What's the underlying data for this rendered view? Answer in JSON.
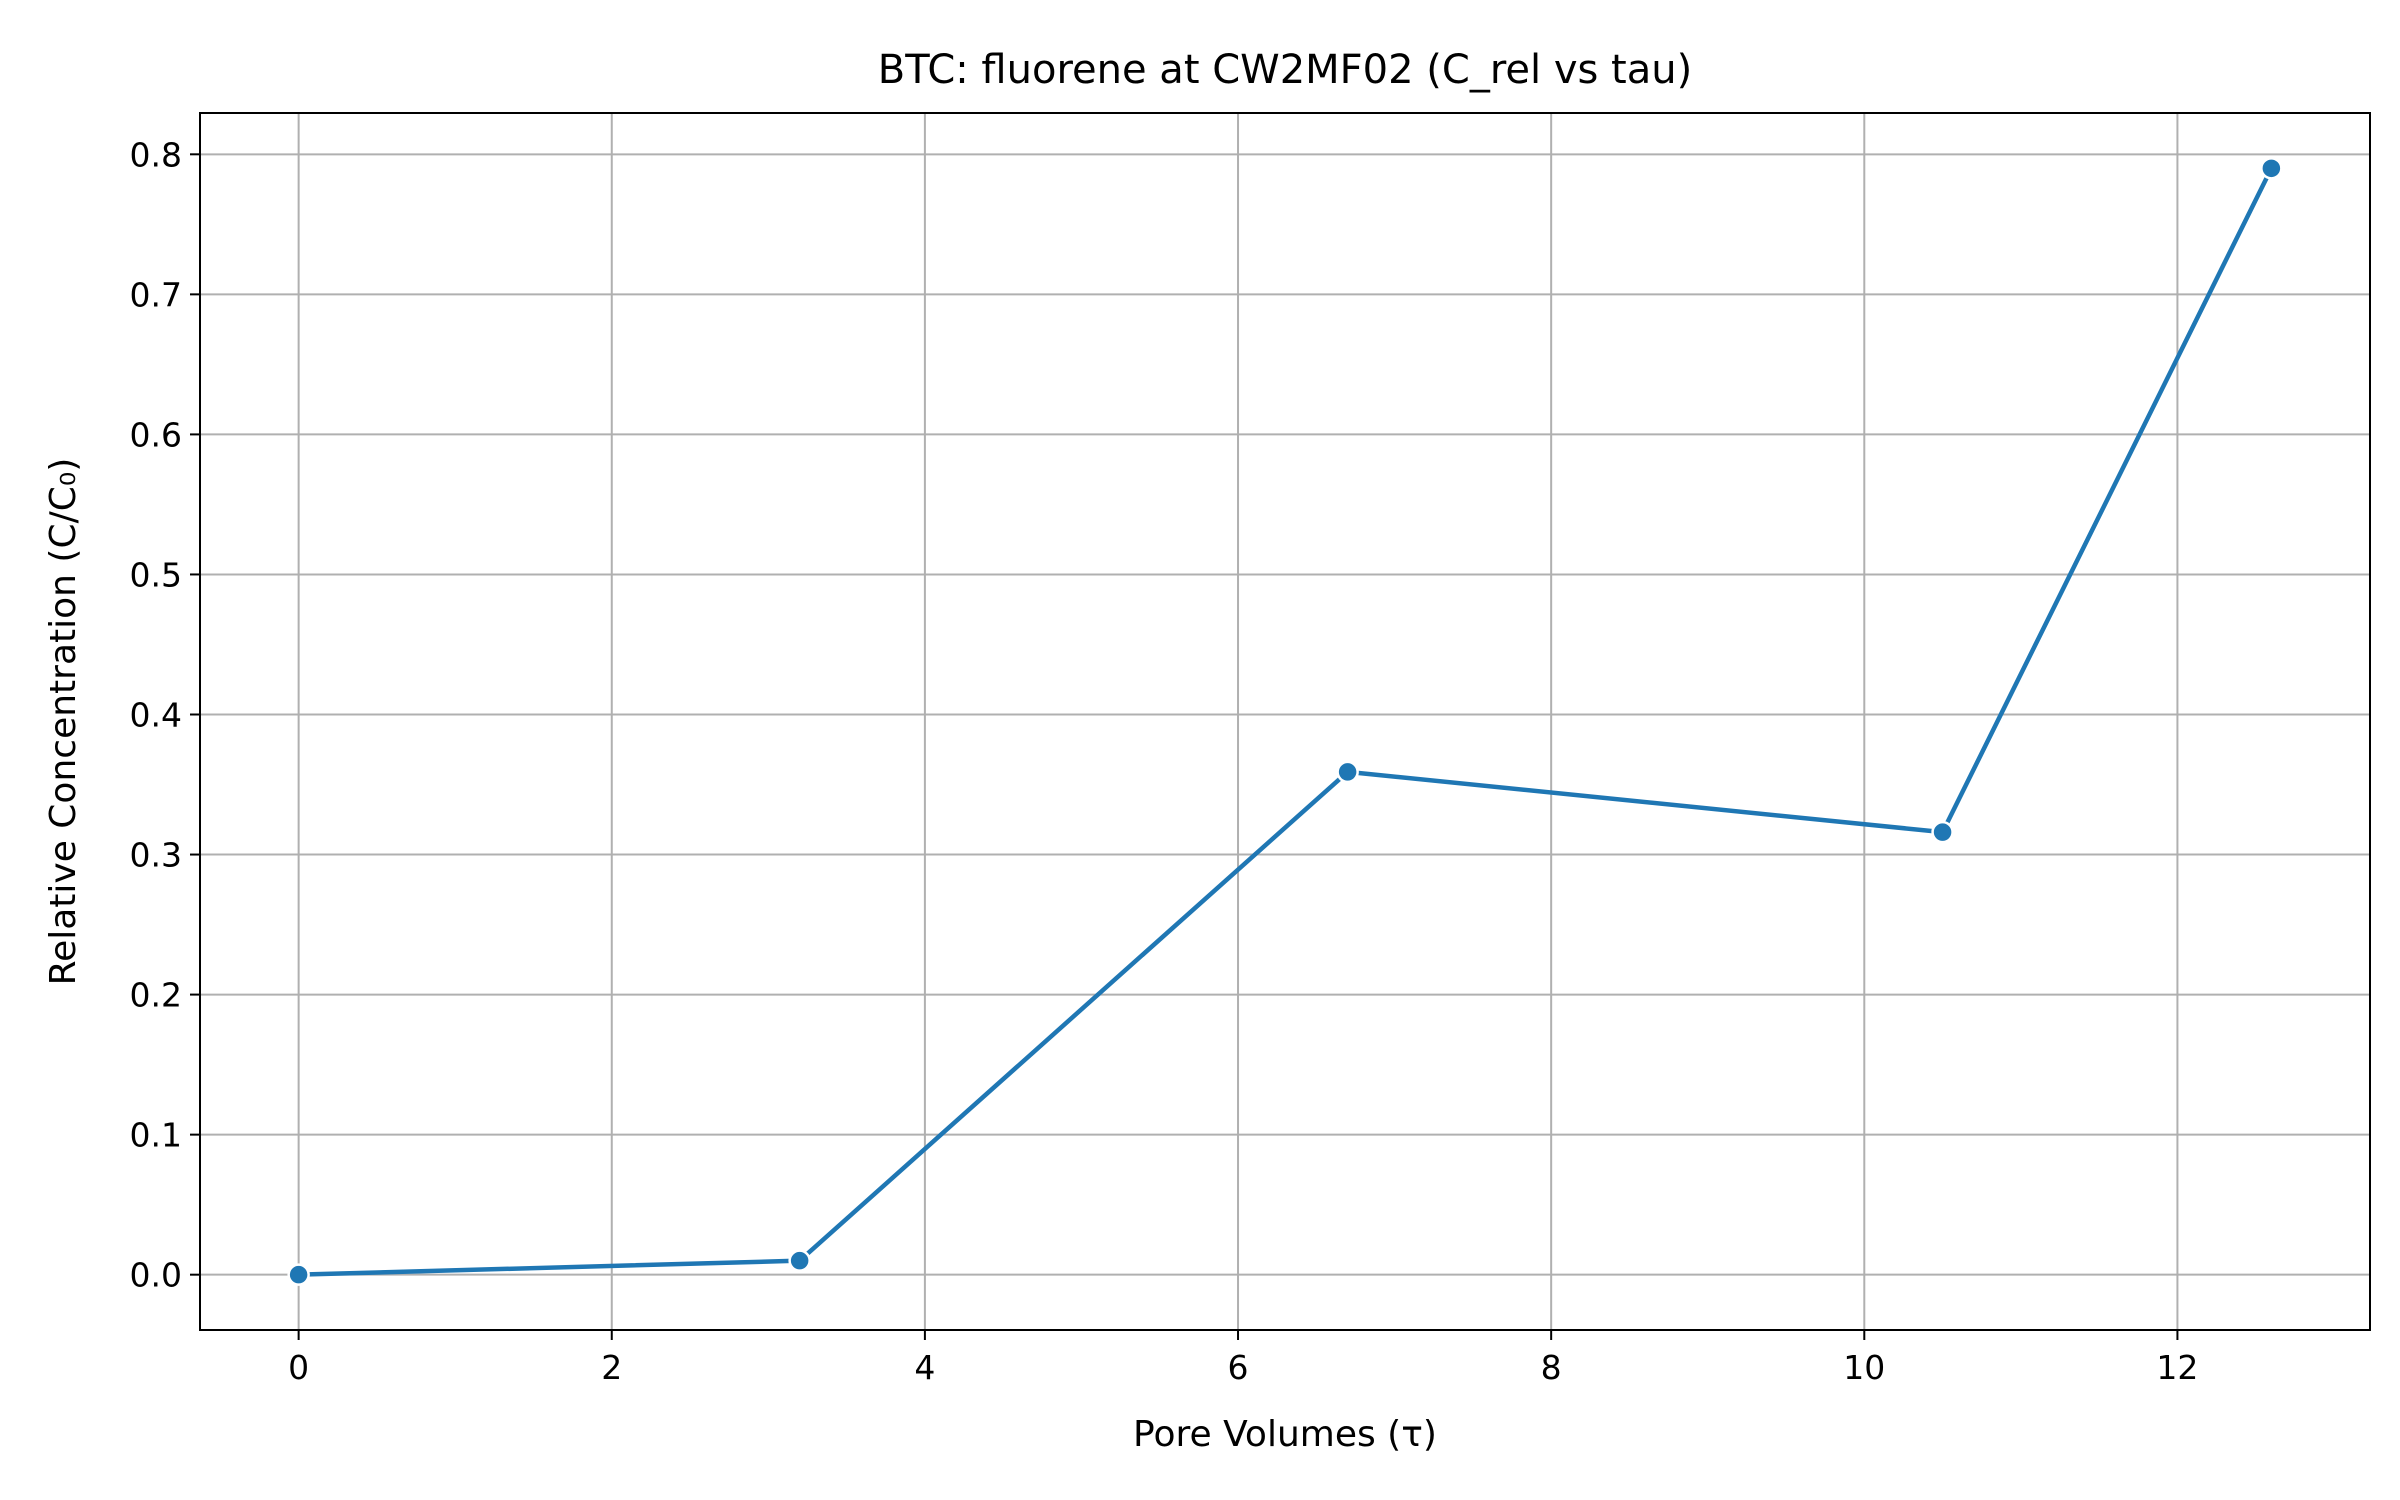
{
  "chart_data": {
    "type": "line",
    "title": "BTC: fluorene at CW2MF02 (C_rel vs tau)",
    "xlabel": "Pore Volumes (τ)",
    "ylabel": "Relative Concentration (C/C₀)",
    "xlim": [
      -0.63,
      13.23
    ],
    "ylim": [
      -0.0395,
      0.8295
    ],
    "x_ticks": [
      0,
      2,
      4,
      6,
      8,
      10,
      12
    ],
    "y_ticks": [
      0.0,
      0.1,
      0.2,
      0.3,
      0.4,
      0.5,
      0.6,
      0.7,
      0.8
    ],
    "x_tick_labels": [
      "0",
      "2",
      "4",
      "6",
      "8",
      "10",
      "12"
    ],
    "y_tick_labels": [
      "0.0",
      "0.1",
      "0.2",
      "0.3",
      "0.4",
      "0.5",
      "0.6",
      "0.7",
      "0.8"
    ],
    "grid": true,
    "series": [
      {
        "color": "#1f77b4",
        "marker": "circle",
        "x": [
          0,
          3.2,
          6.7,
          10.5,
          12.6
        ],
        "y": [
          0.0,
          0.01,
          0.359,
          0.316,
          0.79
        ]
      }
    ]
  }
}
